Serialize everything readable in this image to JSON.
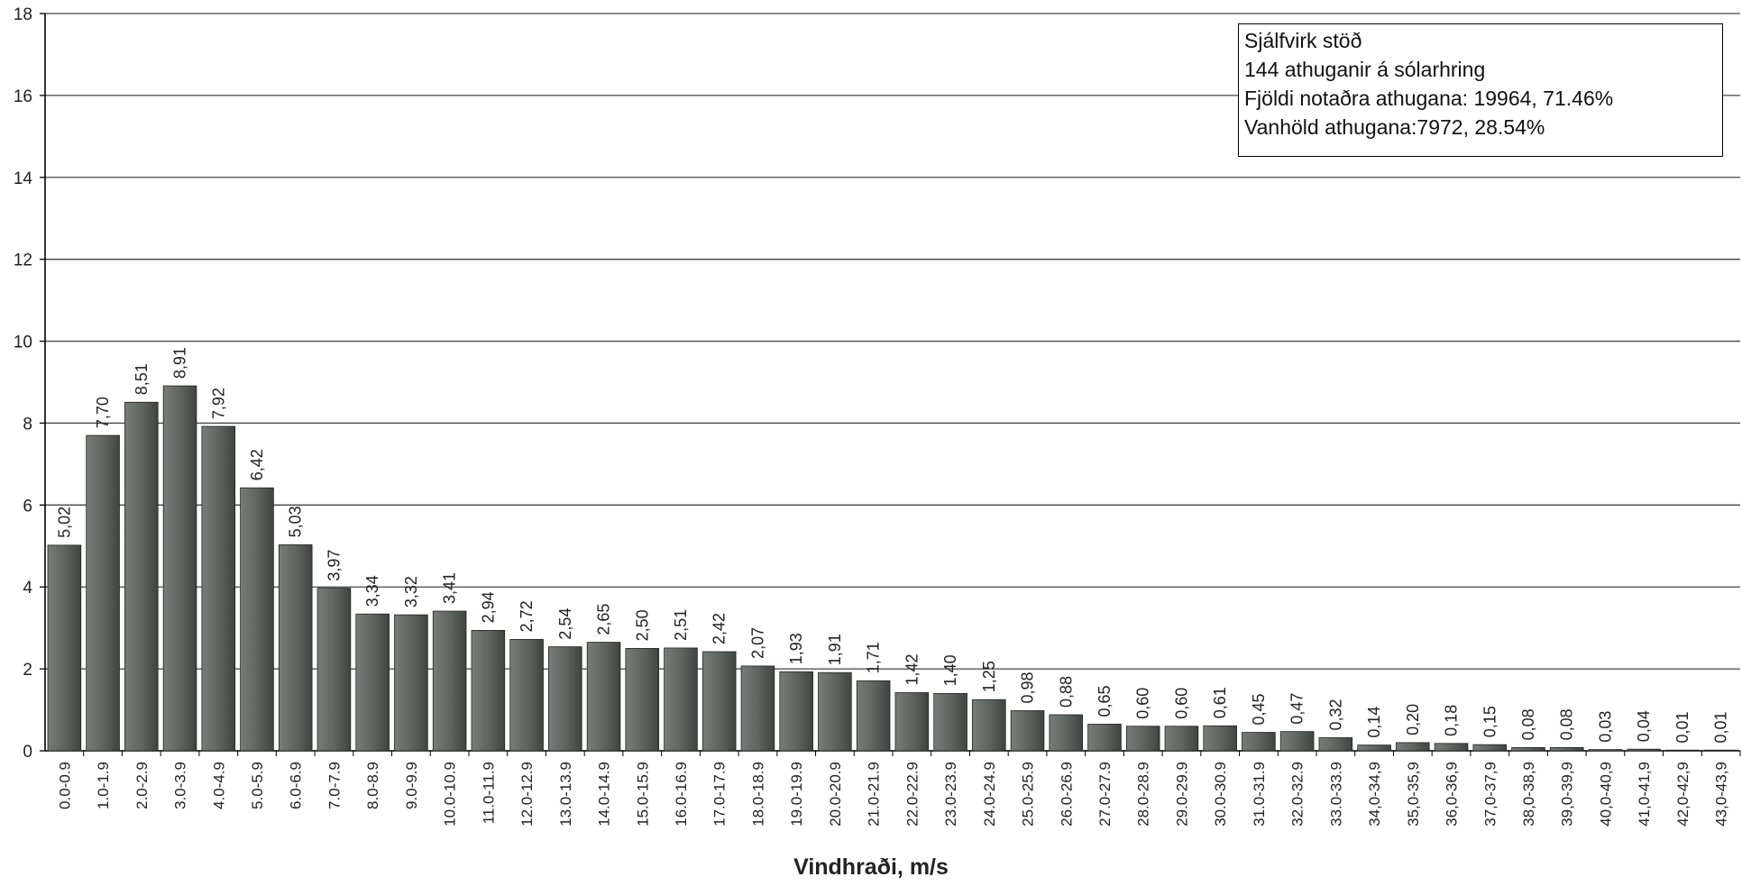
{
  "chart_data": {
    "type": "bar",
    "xlabel": "Vindhraði, m/s",
    "ylabel": "",
    "ylim": [
      0,
      18
    ],
    "yticks": [
      "0",
      "2",
      "4",
      "6",
      "8",
      "10",
      "12",
      "14",
      "16",
      "18"
    ],
    "grid": true,
    "legend_placement": "top-right",
    "bar_color": "#5d625f",
    "annotation_lines": [
      "Sjálfvirk stöð",
      "144 athuganir á sólarhring",
      "Fjöldi notaðra athugana: 19964, 71.46%",
      "Vanhöld athugana:7972, 28.54%"
    ],
    "categories": [
      "0.0-0.9",
      "1.0-1.9",
      "2.0-2.9",
      "3.0-3.9",
      "4.0-4.9",
      "5.0-5.9",
      "6.0-6.9",
      "7.0-7.9",
      "8.0-8.9",
      "9.0-9.9",
      "10.0-10.9",
      "11.0-11.9",
      "12.0-12.9",
      "13.0-13.9",
      "14.0-14.9",
      "15.0-15.9",
      "16.0-16.9",
      "17.0-17.9",
      "18.0-18.9",
      "19.0-19.9",
      "20.0-20.9",
      "21.0-21.9",
      "22.0-22.9",
      "23.0-23.9",
      "24.0-24.9",
      "25.0-25.9",
      "26.0-26.9",
      "27.0-27.9",
      "28.0-28.9",
      "29.0-29.9",
      "30.0-30.9",
      "31.0-31.9",
      "32.0-32.9",
      "33.0-33.9",
      "34,0-34,9",
      "35,0-35,9",
      "36,0-36,9",
      "37,0-37,9",
      "38,0-38,9",
      "39,0-39,9",
      "40,0-40,9",
      "41,0-41,9",
      "42,0-42,9",
      "43,0-43,9"
    ],
    "values": [
      5.02,
      7.7,
      8.51,
      8.91,
      7.92,
      6.42,
      5.03,
      3.97,
      3.34,
      3.32,
      3.41,
      2.94,
      2.72,
      2.54,
      2.65,
      2.5,
      2.51,
      2.42,
      2.07,
      1.93,
      1.91,
      1.71,
      1.42,
      1.4,
      1.25,
      0.98,
      0.88,
      0.65,
      0.6,
      0.6,
      0.61,
      0.45,
      0.47,
      0.32,
      0.14,
      0.2,
      0.18,
      0.15,
      0.08,
      0.08,
      0.03,
      0.04,
      0.01,
      0.01
    ],
    "data_labels": [
      "5,02",
      "7,70",
      "8,51",
      "8,91",
      "7,92",
      "6,42",
      "5,03",
      "3,97",
      "3,34",
      "3,32",
      "3,41",
      "2,94",
      "2,72",
      "2,54",
      "2,65",
      "2,50",
      "2,51",
      "2,42",
      "2,07",
      "1,93",
      "1,91",
      "1,71",
      "1,42",
      "1,40",
      "1,25",
      "0,98",
      "0,88",
      "0,65",
      "0,60",
      "0,60",
      "0,61",
      "0,45",
      "0,47",
      "0,32",
      "0,14",
      "0,20",
      "0,18",
      "0,15",
      "0,08",
      "0,08",
      "0,03",
      "0,04",
      "0,01",
      "0,01"
    ]
  }
}
